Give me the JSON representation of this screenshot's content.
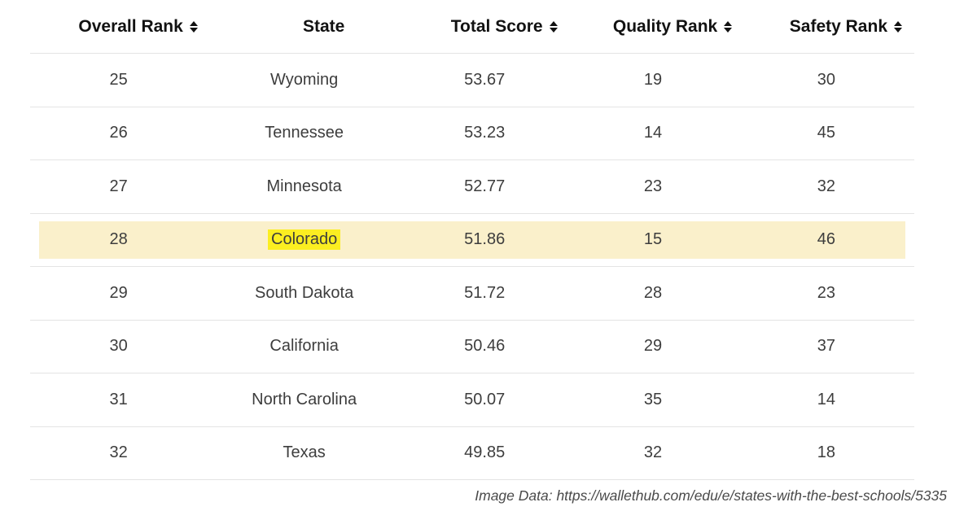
{
  "chart_data": {
    "type": "table",
    "title": "",
    "columns": [
      "Overall Rank",
      "State",
      "Total Score",
      "Quality Rank",
      "Safety Rank"
    ],
    "sortable_columns": [
      "Overall Rank",
      "Total Score",
      "Quality Rank",
      "Safety Rank"
    ],
    "rows": [
      [
        25,
        "Wyoming",
        53.67,
        19,
        30
      ],
      [
        26,
        "Tennessee",
        53.23,
        14,
        45
      ],
      [
        27,
        "Minnesota",
        52.77,
        23,
        32
      ],
      [
        28,
        "Colorado",
        51.86,
        15,
        46
      ],
      [
        29,
        "South Dakota",
        51.72,
        28,
        23
      ],
      [
        30,
        "California",
        50.46,
        29,
        37
      ],
      [
        31,
        "North Carolina",
        50.07,
        35,
        14
      ],
      [
        32,
        "Texas",
        49.85,
        32,
        18
      ]
    ],
    "highlighted_row": {
      "overall_rank": 28,
      "state": "Colorado"
    }
  },
  "table": {
    "columns": [
      {
        "label": "Overall Rank",
        "sortable": true
      },
      {
        "label": "State",
        "sortable": false
      },
      {
        "label": "Total Score",
        "sortable": true
      },
      {
        "label": "Quality Rank",
        "sortable": true
      },
      {
        "label": "Safety Rank",
        "sortable": true
      }
    ],
    "rows": [
      {
        "overall_rank": "25",
        "state": "Wyoming",
        "total_score": "53.67",
        "quality_rank": "19",
        "safety_rank": "30",
        "highlighted": false
      },
      {
        "overall_rank": "26",
        "state": "Tennessee",
        "total_score": "53.23",
        "quality_rank": "14",
        "safety_rank": "45",
        "highlighted": false
      },
      {
        "overall_rank": "27",
        "state": "Minnesota",
        "total_score": "52.77",
        "quality_rank": "23",
        "safety_rank": "32",
        "highlighted": false
      },
      {
        "overall_rank": "28",
        "state": "Colorado",
        "total_score": "51.86",
        "quality_rank": "15",
        "safety_rank": "46",
        "highlighted": true
      },
      {
        "overall_rank": "29",
        "state": "South Dakota",
        "total_score": "51.72",
        "quality_rank": "28",
        "safety_rank": "23",
        "highlighted": false
      },
      {
        "overall_rank": "30",
        "state": "California",
        "total_score": "50.46",
        "quality_rank": "29",
        "safety_rank": "37",
        "highlighted": false
      },
      {
        "overall_rank": "31",
        "state": "North Carolina",
        "total_score": "50.07",
        "quality_rank": "35",
        "safety_rank": "14",
        "highlighted": false
      },
      {
        "overall_rank": "32",
        "state": "Texas",
        "total_score": "49.85",
        "quality_rank": "32",
        "safety_rank": "18",
        "highlighted": false
      }
    ]
  },
  "footer": {
    "citation": "Image Data: https://wallethub.com/edu/e/states-with-the-best-schools/5335"
  },
  "icons": {
    "sort": "sort-up-down-icon"
  },
  "colors": {
    "row_highlight": "#faf0cb",
    "text_highlight": "#fbee21",
    "divider": "#e4e4e4",
    "header_text": "#121212",
    "cell_text": "#3d3d3d",
    "footer_text": "#4a4a4a",
    "page_bg": "#ffffff"
  }
}
